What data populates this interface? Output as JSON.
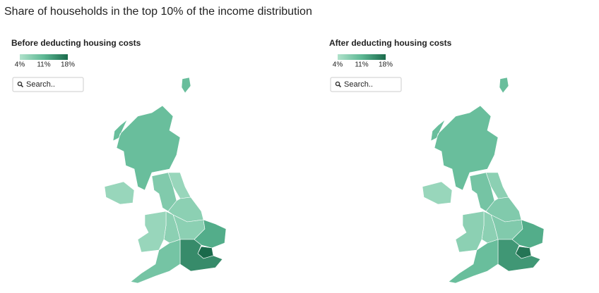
{
  "title": "Share of households in the top 10% of the income distribution",
  "panels": [
    {
      "subtitle": "Before deducting housing costs",
      "legend": {
        "ticks": [
          {
            "value": 4,
            "label": "4%"
          },
          {
            "value": 11,
            "label": "11%"
          },
          {
            "value": 18,
            "label": "18%"
          }
        ],
        "colors": [
          "#b0e2cb",
          "#5db894",
          "#1a6a4b"
        ]
      },
      "search_placeholder": "Search..",
      "regions": [
        10,
        6,
        6,
        8,
        7,
        7,
        7,
        6,
        12,
        18,
        15,
        9
      ]
    },
    {
      "subtitle": "After deducting housing costs",
      "legend": {
        "ticks": [
          {
            "value": 4,
            "label": "4%"
          },
          {
            "value": 11,
            "label": "11%"
          },
          {
            "value": 18,
            "label": "18%"
          }
        ],
        "colors": [
          "#b0e2cb",
          "#5db894",
          "#1a6a4b"
        ]
      },
      "search_placeholder": "Search..",
      "regions": [
        10,
        6,
        7,
        9,
        8,
        8,
        7,
        7,
        12,
        17,
        14,
        10
      ]
    }
  ]
}
